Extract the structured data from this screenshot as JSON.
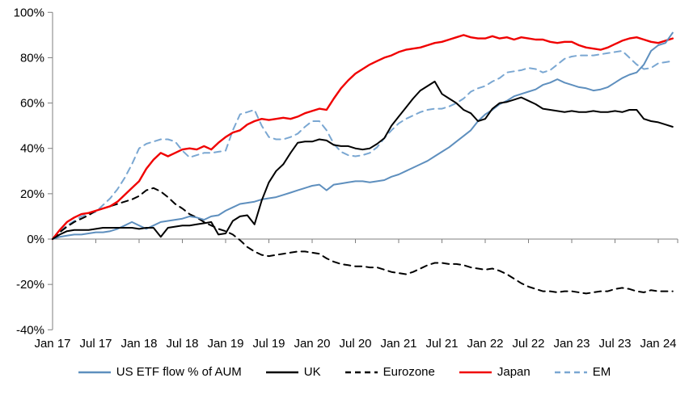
{
  "chart_data": {
    "type": "line",
    "title": "",
    "xlabel": "",
    "ylabel": "",
    "x_unit": "month",
    "x_start": "Jan 17",
    "x_end": "Mar 24",
    "x_tick_labels": [
      "Jan 17",
      "Jul 17",
      "Jan 18",
      "Jul 18",
      "Jan 19",
      "Jul 19",
      "Jan 20",
      "Jul 20",
      "Jan 21",
      "Jul 21",
      "Jan 22",
      "Jul 22",
      "Jan 23",
      "Jul 23",
      "Jan 24"
    ],
    "y_ticks": [
      100,
      80,
      60,
      40,
      20,
      0,
      -20,
      -40
    ],
    "y_tick_labels": [
      "100%",
      "80%",
      "60%",
      "40%",
      "20%",
      "0%",
      "-20%",
      "-40%"
    ],
    "ylim": [
      -40,
      100
    ],
    "grid": false,
    "legend_position": "bottom",
    "axis_color": "#7f7f7f",
    "series": [
      {
        "id": "us-etf-flow",
        "name": "US ETF flow % of AUM",
        "color": "#5e8fbe",
        "dash": "solid",
        "values": [
          0,
          1,
          1.5,
          2,
          2,
          2.5,
          3,
          3,
          3.5,
          4.5,
          6,
          7.5,
          6,
          4.5,
          6,
          7.5,
          8,
          8.5,
          9,
          10,
          9.5,
          8.5,
          10,
          10.5,
          12.5,
          14,
          15.5,
          16,
          16.5,
          17.5,
          18,
          18.5,
          19.5,
          20.5,
          21.5,
          22.5,
          23.5,
          24,
          21.5,
          24,
          24.5,
          25,
          25.5,
          25.5,
          25,
          25.5,
          26,
          27.5,
          28.5,
          30,
          31.5,
          33,
          34.5,
          36.5,
          38.5,
          40.5,
          43,
          45.5,
          48,
          52,
          55,
          57,
          59.5,
          61,
          63,
          64,
          65,
          66,
          68,
          69,
          70.5,
          69,
          68,
          67,
          66.5,
          65.5,
          66,
          67,
          69,
          71,
          72.5,
          73.5,
          77,
          83,
          85.5,
          86.5,
          91
        ]
      },
      {
        "id": "uk",
        "name": "UK",
        "color": "#000000",
        "dash": "solid",
        "values": [
          0,
          2,
          3.5,
          4,
          4,
          4,
          4.5,
          5,
          5,
          5,
          5,
          5,
          4.5,
          5,
          5,
          1,
          5,
          5.5,
          6,
          6,
          6.5,
          7,
          7.5,
          2,
          2.5,
          8,
          10,
          10.5,
          6.5,
          17,
          25,
          30,
          33,
          38,
          42.5,
          43,
          43,
          44,
          43.5,
          41.5,
          41,
          41,
          40,
          39.5,
          40,
          42,
          44.5,
          50,
          54,
          58,
          62,
          65.5,
          67.5,
          69.5,
          64,
          62,
          60,
          57,
          55.5,
          52,
          53,
          57.5,
          60,
          60.5,
          61.5,
          62.5,
          61,
          59.5,
          57.5,
          57,
          56.5,
          56,
          56.5,
          56,
          56,
          56.5,
          56,
          56,
          56.5,
          56,
          57,
          57,
          53,
          52,
          51.5,
          50.5,
          49.5
        ]
      },
      {
        "id": "eurozone",
        "name": "Eurozone",
        "color": "#000000",
        "dash": "dashed",
        "values": [
          0,
          3,
          5.5,
          7.5,
          9,
          10.5,
          12.5,
          13.5,
          14.5,
          15.5,
          16.5,
          17.5,
          19,
          21.5,
          22.5,
          21,
          18.5,
          15.5,
          13.5,
          11,
          9.5,
          7.5,
          6,
          4.5,
          3.5,
          2,
          -0.5,
          -3.5,
          -5.5,
          -7,
          -7.5,
          -7,
          -6.5,
          -6,
          -5.5,
          -5.5,
          -6,
          -6.5,
          -8.5,
          -10,
          -11,
          -11.5,
          -12,
          -12,
          -12.5,
          -12.5,
          -13.5,
          -14.5,
          -15,
          -15.5,
          -14.5,
          -13,
          -11.5,
          -10.5,
          -10.5,
          -11,
          -11,
          -11.5,
          -12.5,
          -13,
          -13.5,
          -13,
          -14,
          -15.5,
          -17.5,
          -19.5,
          -21,
          -22,
          -23,
          -23,
          -23.5,
          -23,
          -23,
          -23.5,
          -24,
          -23.5,
          -23,
          -23,
          -22,
          -21.5,
          -22,
          -23,
          -23.5,
          -22.5,
          -23,
          -23,
          -23
        ]
      },
      {
        "id": "japan",
        "name": "Japan",
        "color": "#f00000",
        "dash": "solid",
        "values": [
          0,
          4,
          7.5,
          9.5,
          11,
          11.5,
          12.5,
          13.5,
          14.5,
          16.5,
          19.5,
          22.5,
          25.5,
          31,
          35,
          38,
          36.5,
          38,
          39.5,
          40,
          39.5,
          41,
          39.5,
          42.5,
          45,
          47,
          48,
          50.5,
          52,
          53,
          52.5,
          53,
          53.5,
          53,
          54,
          55.5,
          56.5,
          57.5,
          57,
          62,
          66.5,
          70,
          73,
          75,
          77,
          78.5,
          80,
          81,
          82.5,
          83.5,
          84,
          84.5,
          85.5,
          86.5,
          87,
          88,
          89,
          90,
          89,
          88.5,
          88.5,
          89.5,
          88.5,
          89,
          88,
          89,
          88.5,
          88,
          88,
          87,
          86.5,
          87,
          87,
          85.5,
          84.5,
          84,
          83.5,
          84.5,
          86,
          87.5,
          88.5,
          89,
          88,
          87,
          86.5,
          87.5,
          88.5
        ]
      },
      {
        "id": "em",
        "name": "EM",
        "color": "#7aa7d2",
        "dash": "dashed",
        "values": [
          0,
          3,
          6,
          8,
          10,
          11,
          12,
          15,
          18,
          22,
          27,
          33,
          40,
          42,
          43,
          44,
          44,
          43,
          39,
          36,
          37,
          38,
          38,
          38.5,
          39,
          48,
          55,
          56,
          57,
          50,
          45,
          44,
          44,
          45,
          46.5,
          49.5,
          52,
          52,
          48,
          42,
          38.5,
          37,
          36.5,
          37,
          38,
          40.5,
          44.5,
          48,
          51,
          53,
          54.5,
          56,
          57,
          57.5,
          57.5,
          58.5,
          60,
          62,
          65,
          66.5,
          67.5,
          69.5,
          71,
          73.5,
          74,
          74.5,
          75.5,
          75,
          73.5,
          74.5,
          77,
          79.5,
          80.5,
          81,
          81,
          81,
          81.5,
          82,
          82.5,
          83,
          80,
          77,
          75,
          75.5,
          77.5,
          78,
          78.5
        ]
      }
    ]
  }
}
